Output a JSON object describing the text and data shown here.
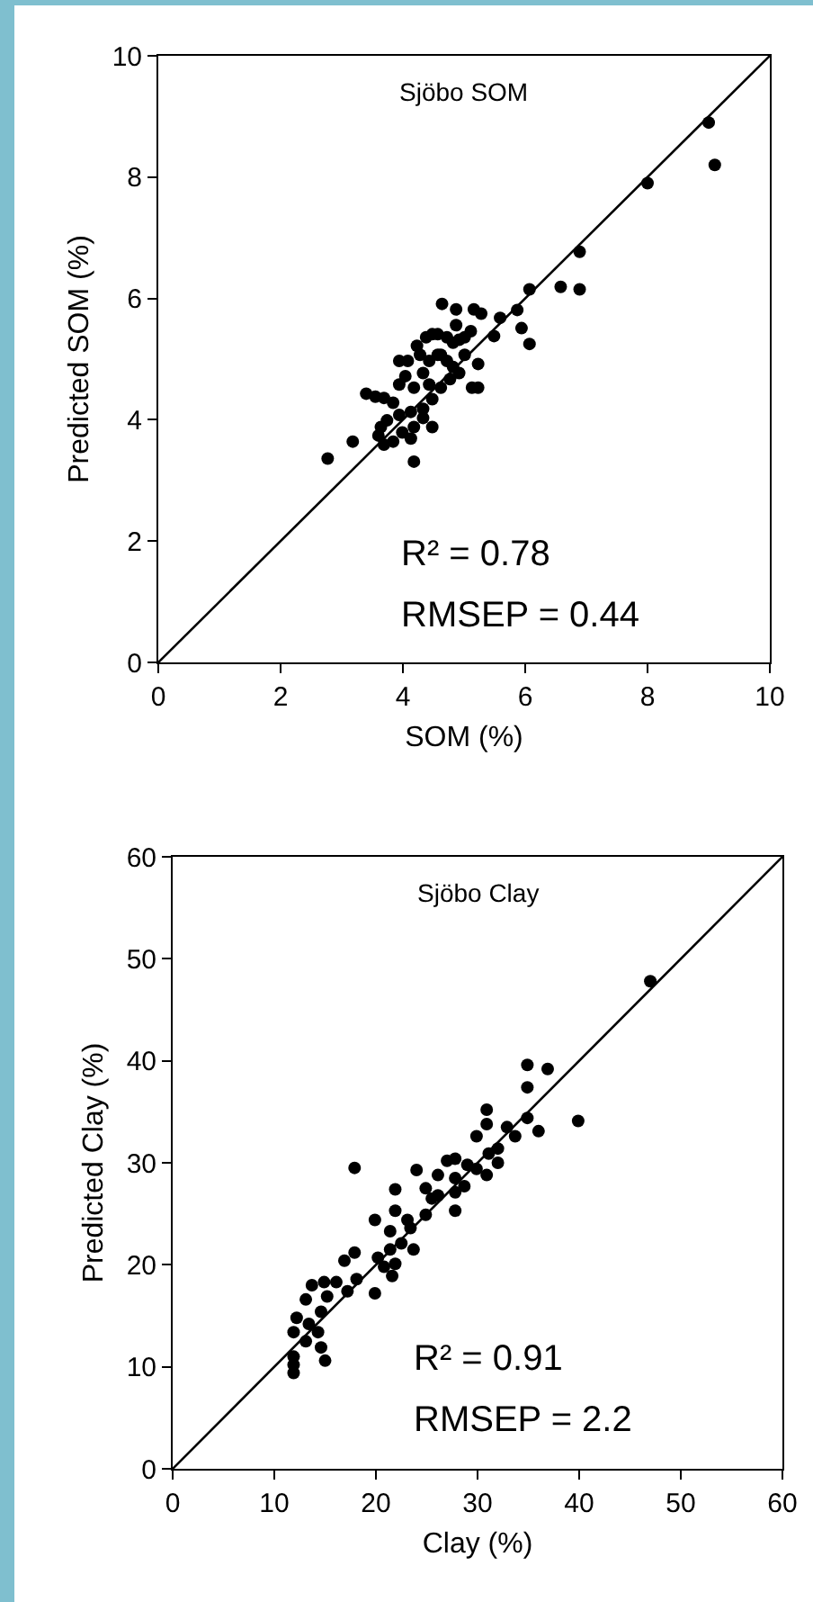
{
  "chart_data": [
    {
      "type": "scatter",
      "xlabel": "SOM (%)",
      "ylabel": "Predicted SOM (%)",
      "xlim": [
        0,
        10
      ],
      "ylim": [
        0,
        10
      ],
      "xticks": [
        0,
        2,
        4,
        6,
        8,
        10
      ],
      "yticks": [
        0,
        2,
        4,
        6,
        8,
        10
      ],
      "grid": false,
      "annotations": [
        "Sjöbo SOM",
        "R² = 0.78",
        "RMSEP = 0.44"
      ],
      "series": [
        {
          "marker": "circle",
          "color": "#000000",
          "x": [
            9.0,
            9.1,
            8.0,
            6.89,
            6.89,
            6.58,
            6.07,
            5.87,
            5.94,
            6.07,
            5.59,
            5.49,
            5.23,
            5.23,
            5.13,
            4.64,
            4.87,
            5.16,
            5.28,
            2.77,
            3.18,
            4.18,
            3.4,
            3.55,
            3.69,
            3.84,
            3.94,
            4.08,
            4.23,
            4.38,
            4.48,
            4.57,
            4.72,
            4.82,
            4.92,
            5.01,
            5.11,
            4.62,
            4.72,
            4.82,
            4.43,
            4.33,
            4.04,
            3.94,
            4.18,
            4.43,
            4.62,
            4.77,
            4.92,
            4.48,
            4.33,
            4.13,
            3.94,
            3.74,
            3.64,
            3.6,
            3.69,
            3.84,
            3.99,
            4.18,
            4.33,
            4.48,
            4.13,
            4.57,
            4.28,
            5.01,
            4.87
          ],
          "values": [
            8.9,
            8.2,
            7.9,
            6.77,
            6.15,
            6.19,
            6.15,
            5.81,
            5.51,
            5.25,
            5.68,
            5.38,
            4.92,
            4.53,
            4.53,
            5.91,
            5.82,
            5.82,
            5.75,
            3.36,
            3.64,
            3.31,
            4.43,
            4.38,
            4.36,
            4.28,
            4.97,
            4.97,
            5.22,
            5.36,
            5.41,
            5.41,
            5.36,
            5.27,
            5.32,
            5.36,
            5.46,
            5.07,
            4.97,
            4.87,
            4.97,
            4.77,
            4.72,
            4.58,
            4.53,
            4.58,
            4.53,
            4.67,
            4.77,
            4.34,
            4.18,
            4.13,
            4.08,
            3.99,
            3.88,
            3.74,
            3.59,
            3.64,
            3.79,
            3.88,
            4.03,
            3.88,
            3.69,
            5.07,
            5.07,
            5.07,
            5.56
          ]
        },
        {
          "type": "line",
          "marker": "none",
          "line_style": "solid",
          "color": "#000000",
          "x": [
            0,
            10
          ],
          "values": [
            0,
            10
          ]
        }
      ]
    },
    {
      "type": "scatter",
      "xlabel": "Clay (%)",
      "ylabel": "Predicted Clay (%)",
      "xlim": [
        0,
        60
      ],
      "ylim": [
        0,
        60
      ],
      "xticks": [
        0,
        10,
        20,
        30,
        40,
        50,
        60
      ],
      "yticks": [
        0,
        10,
        20,
        30,
        40,
        50,
        60
      ],
      "grid": false,
      "annotations": [
        "Sjöbo Clay",
        "R² = 0.91",
        "RMSEP = 2.2"
      ],
      "series": [
        {
          "marker": "circle",
          "color": "#000000",
          "x": [
            47.0,
            34.9,
            36.9,
            34.9,
            39.9,
            36.0,
            34.9,
            30.9,
            30.9,
            32.9,
            33.7,
            29.9,
            32.0,
            31.1,
            32.0,
            29.9,
            29.0,
            27.8,
            27.0,
            30.9,
            28.7,
            27.8,
            26.1,
            24.0,
            17.9,
            24.9,
            21.9,
            27.8,
            27.8,
            24.9,
            21.9,
            19.9,
            23.1,
            25.5,
            26.1,
            23.4,
            22.5,
            21.4,
            23.7,
            21.9,
            21.6,
            20.2,
            17.9,
            16.9,
            18.1,
            17.2,
            19.9,
            14.9,
            13.7,
            13.1,
            15.2,
            14.6,
            12.2,
            13.4,
            11.9,
            14.3,
            13.1,
            14.6,
            11.9,
            11.9,
            11.9,
            15.0,
            16.1,
            20.8,
            21.4
          ],
          "values": [
            47.8,
            39.6,
            39.2,
            37.4,
            34.1,
            33.1,
            34.4,
            35.2,
            33.8,
            33.5,
            32.6,
            32.6,
            31.4,
            30.9,
            30.0,
            29.4,
            29.8,
            30.4,
            30.2,
            28.8,
            27.7,
            28.5,
            28.8,
            29.3,
            29.5,
            27.5,
            27.4,
            27.1,
            25.3,
            24.9,
            25.3,
            24.4,
            24.4,
            26.5,
            26.8,
            23.6,
            22.1,
            23.3,
            21.5,
            20.1,
            18.9,
            20.7,
            21.2,
            20.4,
            18.6,
            17.4,
            17.2,
            18.3,
            18.0,
            16.6,
            16.9,
            15.4,
            14.8,
            14.2,
            13.4,
            13.4,
            12.5,
            11.9,
            11.0,
            10.2,
            9.4,
            10.6,
            18.3,
            19.8,
            21.5
          ]
        },
        {
          "type": "line",
          "marker": "none",
          "line_style": "solid",
          "color": "#000000",
          "x": [
            0,
            60
          ],
          "values": [
            0,
            60
          ]
        }
      ]
    }
  ]
}
